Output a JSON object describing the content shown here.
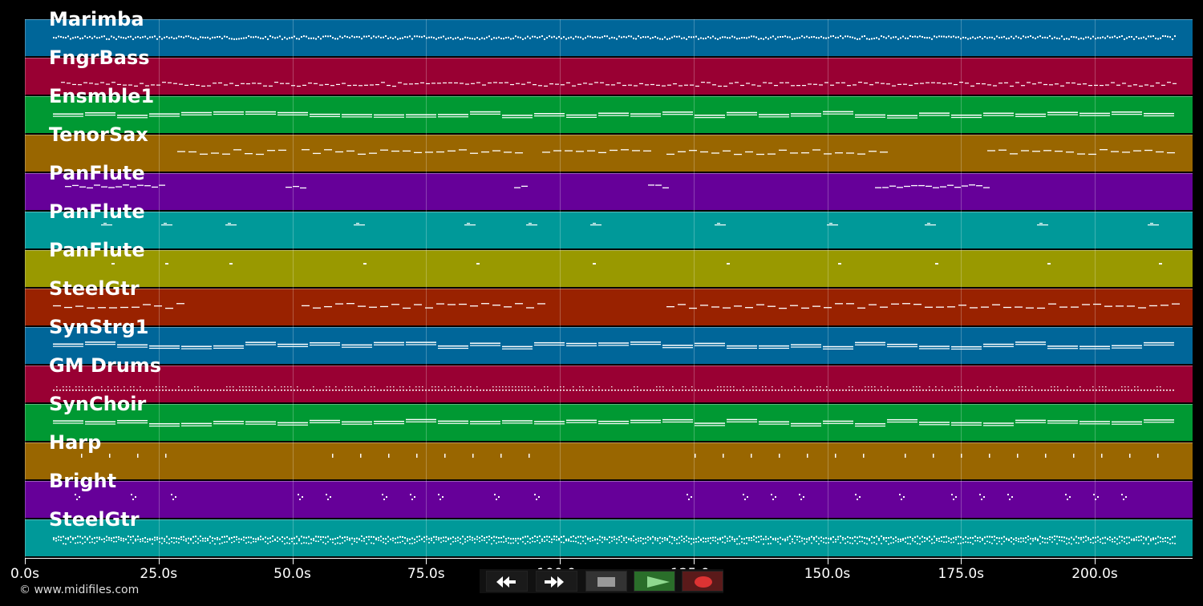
{
  "tracks": [
    {
      "name": "Marimba",
      "color": "#006699",
      "pattern": "dense"
    },
    {
      "name": "FngrBass",
      "color": "#990033",
      "pattern": "bass"
    },
    {
      "name": "Ensmble1",
      "color": "#009933",
      "pattern": "long"
    },
    {
      "name": "TenorSax",
      "color": "#996600",
      "pattern": "phrases"
    },
    {
      "name": "PanFlute",
      "color": "#660099",
      "pattern": "sparse"
    },
    {
      "name": "PanFlute",
      "color": "#009999",
      "pattern": "blips"
    },
    {
      "name": "PanFlute",
      "color": "#999900",
      "pattern": "dots"
    },
    {
      "name": "SteelGtr",
      "color": "#992200",
      "pattern": "phrases2"
    },
    {
      "name": "SynStrg1",
      "color": "#006699",
      "pattern": "pad"
    },
    {
      "name": "GM Drums",
      "color": "#990033",
      "pattern": "drums"
    },
    {
      "name": "SynChoir",
      "color": "#009933",
      "pattern": "pad"
    },
    {
      "name": "Harp",
      "color": "#996600",
      "pattern": "ticks"
    },
    {
      "name": "Bright",
      "color": "#660099",
      "pattern": "clusters"
    },
    {
      "name": "SteelGtr",
      "color": "#009999",
      "pattern": "dense2"
    }
  ],
  "timeline": {
    "duration_s": 218.5,
    "ticks": [
      "0.0s",
      "25.0s",
      "50.0s",
      "75.0s",
      "100.0s",
      "125.0s",
      "150.0s",
      "175.0s",
      "200.0s"
    ],
    "tick_values": [
      0,
      25,
      50,
      75,
      100,
      125,
      150,
      175,
      200
    ]
  },
  "copyright": "© www.midifiles.com",
  "transport": {
    "buttons": [
      {
        "name": "rewind-button",
        "icon": "rewind-icon",
        "color": "#1a1a1a"
      },
      {
        "name": "fast-forward-button",
        "icon": "fast-forward-icon",
        "color": "#1a1a1a"
      },
      {
        "name": "stop-button",
        "icon": "stop-icon",
        "color": "#333333"
      },
      {
        "name": "play-button",
        "icon": "play-icon",
        "color": "#2a6e2a"
      },
      {
        "name": "record-button",
        "icon": "record-icon",
        "color": "#5a1a1a"
      }
    ]
  }
}
